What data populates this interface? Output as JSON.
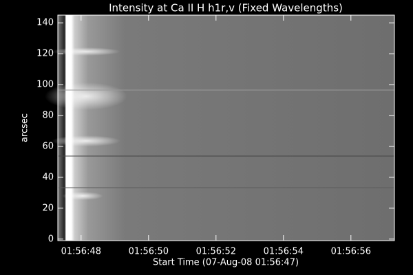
{
  "chart_data": {
    "type": "image",
    "title": "Intensity at Ca II H h1r,v (Fixed Wavelengths)",
    "xlabel": "Start Time (07-Aug-08 01:56:47)",
    "ylabel": "arcsec",
    "xlim": [
      0.31,
      10.29
    ],
    "xticks": [
      {
        "value": 1,
        "label": "01:56:48"
      },
      {
        "value": 3,
        "label": "01:56:50"
      },
      {
        "value": 5,
        "label": "01:56:52"
      },
      {
        "value": 7,
        "label": "01:56:54"
      },
      {
        "value": 9,
        "label": "01:56:56"
      }
    ],
    "ylim": [
      -1,
      145
    ],
    "yticks": [
      0,
      20,
      40,
      60,
      80,
      100,
      120,
      140
    ]
  }
}
